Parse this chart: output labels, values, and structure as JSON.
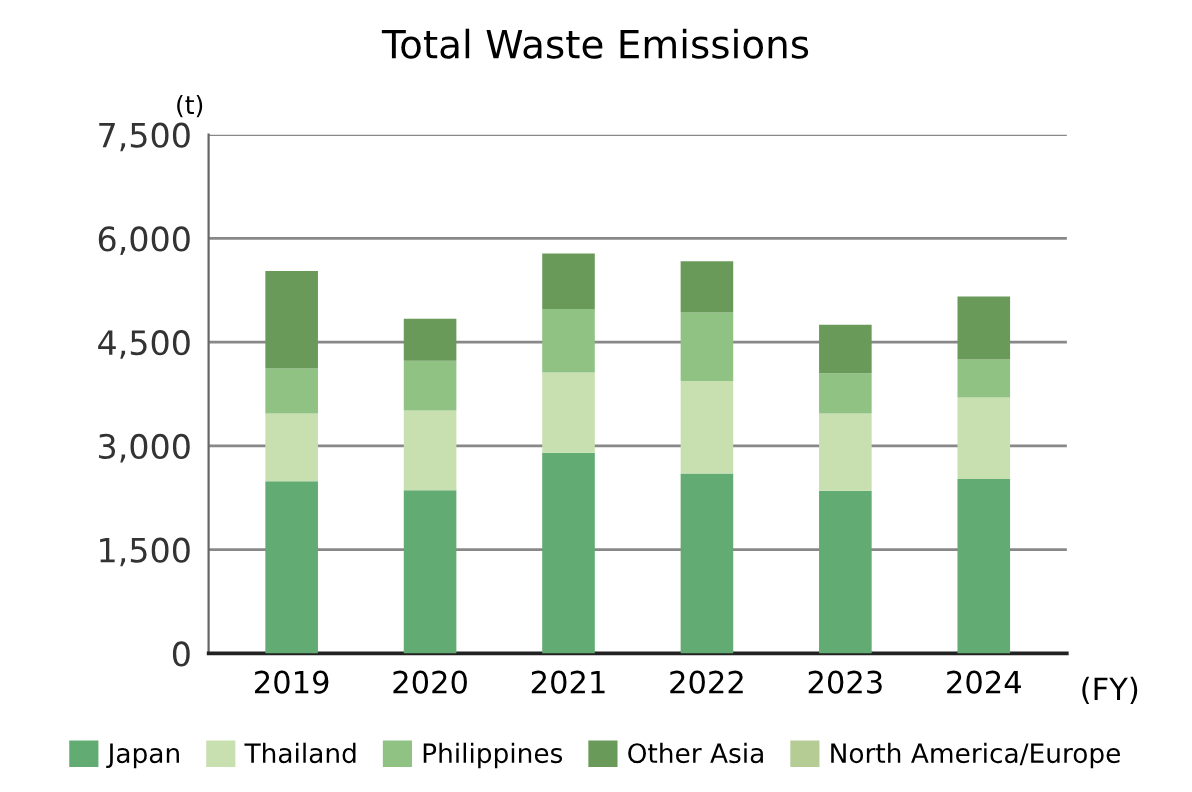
{
  "chart_data": {
    "type": "bar",
    "stacked": true,
    "title": "Total Waste Emissions",
    "ylabel": "(t)",
    "xlabel": "(FY)",
    "categories": [
      "2019",
      "2020",
      "2021",
      "2022",
      "2023",
      "2024"
    ],
    "series": [
      {
        "name": "Japan",
        "color": "#62ab72",
        "values": [
          2490,
          2360,
          2900,
          2600,
          2350,
          2520
        ]
      },
      {
        "name": "Thailand",
        "color": "#c8e0b0",
        "values": [
          980,
          1150,
          1160,
          1340,
          1120,
          1180
        ]
      },
      {
        "name": "Philippines",
        "color": "#8fc283",
        "values": [
          650,
          720,
          920,
          990,
          580,
          550
        ]
      },
      {
        "name": "Other Asia",
        "color": "#6a9a5a",
        "values": [
          1410,
          610,
          800,
          740,
          700,
          910
        ]
      },
      {
        "name": "North America/Europe",
        "color": "#b5cc95",
        "values": [
          0,
          0,
          0,
          0,
          0,
          0
        ]
      }
    ],
    "ylim": [
      0,
      7500
    ],
    "yticks": [
      {
        "value": 0,
        "label": "0"
      },
      {
        "value": 1500,
        "label": "1,500"
      },
      {
        "value": 3000,
        "label": "3,000"
      },
      {
        "value": 4500,
        "label": "4,500"
      },
      {
        "value": 6000,
        "label": "6,000"
      },
      {
        "value": 7500,
        "label": "7,500"
      }
    ],
    "grid": "y",
    "legend": "bottom"
  }
}
